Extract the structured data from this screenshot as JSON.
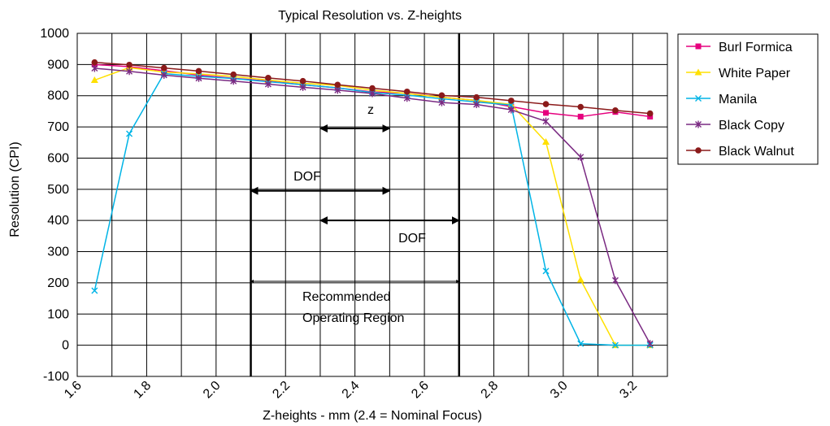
{
  "chart_data": {
    "type": "line",
    "title": "Typical Resolution vs. Z-heights",
    "xlabel": "Z-heights - mm (2.4 = Nominal Focus)",
    "ylabel": "Resolution (CPI)",
    "xlim": [
      1.6,
      3.3
    ],
    "ylim": [
      -100,
      1000
    ],
    "x_ticks": [
      "1.6",
      "1.8",
      "2.0",
      "2.2",
      "2.4",
      "2.6",
      "2.8",
      "3.0",
      "3.2"
    ],
    "y_ticks": [
      "-100",
      "0",
      "100",
      "200",
      "300",
      "400",
      "500",
      "600",
      "700",
      "800",
      "900",
      "1000"
    ],
    "x": [
      1.65,
      1.75,
      1.85,
      1.95,
      2.05,
      2.15,
      2.25,
      2.35,
      2.45,
      2.55,
      2.65,
      2.75,
      2.85,
      2.95,
      3.05,
      3.15,
      3.25
    ],
    "series": [
      {
        "name": "Burl Formica",
        "color": "#e6007e",
        "marker": "square",
        "values": [
          900,
          893,
          880,
          866,
          856,
          847,
          835,
          825,
          812,
          808,
          795,
          785,
          765,
          745,
          733,
          748,
          733
        ]
      },
      {
        "name": "White Paper",
        "color": "#ffe000",
        "marker": "triangle",
        "values": [
          850,
          890,
          876,
          870,
          862,
          850,
          840,
          833,
          818,
          807,
          795,
          785,
          772,
          652,
          210,
          0,
          0
        ]
      },
      {
        "name": "Manila",
        "color": "#00b4e6",
        "marker": "x",
        "values": [
          175,
          678,
          871,
          862,
          855,
          845,
          835,
          825,
          810,
          802,
          790,
          780,
          770,
          238,
          5,
          0,
          0
        ]
      },
      {
        "name": "Black Copy",
        "color": "#7a2a82",
        "marker": "star",
        "values": [
          888,
          878,
          866,
          856,
          847,
          837,
          827,
          818,
          807,
          792,
          778,
          772,
          755,
          718,
          603,
          208,
          5
        ]
      },
      {
        "name": "Black Walnut",
        "color": "#8b1a1a",
        "marker": "circle",
        "values": [
          907,
          899,
          889,
          879,
          868,
          857,
          847,
          835,
          824,
          813,
          801,
          795,
          784,
          773,
          764,
          753,
          743
        ]
      }
    ],
    "vertical_lines": [
      2.1,
      2.7
    ],
    "annotations": {
      "z_label": "z",
      "dof1_label": "DOF",
      "dof2_label": "DOF",
      "rec_line1": "Recommended",
      "rec_line2": "Operating Region"
    },
    "arrows": [
      {
        "label": "z",
        "x1": 2.3,
        "x2": 2.5,
        "y": 695
      },
      {
        "label": "DOF",
        "x1": 2.1,
        "x2": 2.5,
        "y": 495
      },
      {
        "label": "DOF",
        "x1": 2.3,
        "x2": 2.7,
        "y": 400
      },
      {
        "label": "Recommended Operating Region",
        "x1": 2.1,
        "x2": 2.7,
        "y": 205
      }
    ],
    "grid": true,
    "legend_position": "right"
  }
}
